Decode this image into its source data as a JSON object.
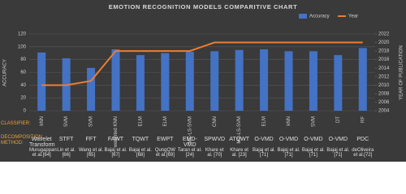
{
  "chart_data": {
    "type": "bar",
    "title": "EMOTION RECOGNITION MODELS COMPARITIVE CHART",
    "categories": [
      "kNN",
      "SVM",
      "SVM",
      "weighted KNN",
      "ELM",
      "ELM",
      "MC-LS-SVM",
      "CNN",
      "MC-LS-SVM",
      "ELM",
      "kNN",
      "SVM",
      "DT",
      "RF"
    ],
    "category_row_label": "CLASSIFIER:",
    "decomposition_row_label": "DECOMPOSITION METHOD:",
    "decomposition_methods": [
      "Wavelet Transform",
      "STFT",
      "FFT",
      "FAWT",
      "TQWT",
      "EWPT",
      "EMD-VMD",
      "SPWVD",
      "ATQWT",
      "O-VMD",
      "O-VMD",
      "O-VMD",
      "O-VMD",
      "PDC"
    ],
    "authors": [
      "Murugappan et al.[64]",
      "Lin et al. [66]",
      "Wang et al. [65]",
      "Bajaj et al. [67]",
      "Bajaj et al. [68]",
      "QungQW et al.[69]",
      "Taran et al.[24]",
      "Khare et al. [70]",
      "Khare et al. [23]",
      "Bajaj et al.[71]",
      "Bajaj et al.[71]",
      "Bajaj et al.[71]",
      "Bajaj et al.[71]",
      "deOliveira et al.[72]"
    ],
    "series": [
      {
        "name": "Accuracy",
        "type": "bar",
        "axis": "y",
        "color": "#4472c4",
        "values": [
          91,
          82,
          67,
          96,
          87,
          90,
          92,
          93,
          95,
          96,
          93,
          93,
          87,
          98
        ]
      },
      {
        "name": "Year",
        "type": "line",
        "axis": "y2",
        "color": "#ed7d31",
        "values": [
          2010,
          2010,
          2011,
          2018,
          2018,
          2018,
          2018,
          2020,
          2020,
          2020,
          2020,
          2020,
          2020,
          2020
        ]
      }
    ],
    "ylabel": "ACCURACY",
    "y2label": "YEAR OF PUBLICATION",
    "ylim": [
      0,
      120
    ],
    "yticks": [
      0,
      20,
      40,
      60,
      80,
      100,
      120
    ],
    "y2lim": [
      2004,
      2022
    ],
    "y2ticks": [
      2004,
      2006,
      2008,
      2010,
      2012,
      2014,
      2016,
      2018,
      2020,
      2022
    ],
    "grid": true,
    "legend": "top-right"
  }
}
